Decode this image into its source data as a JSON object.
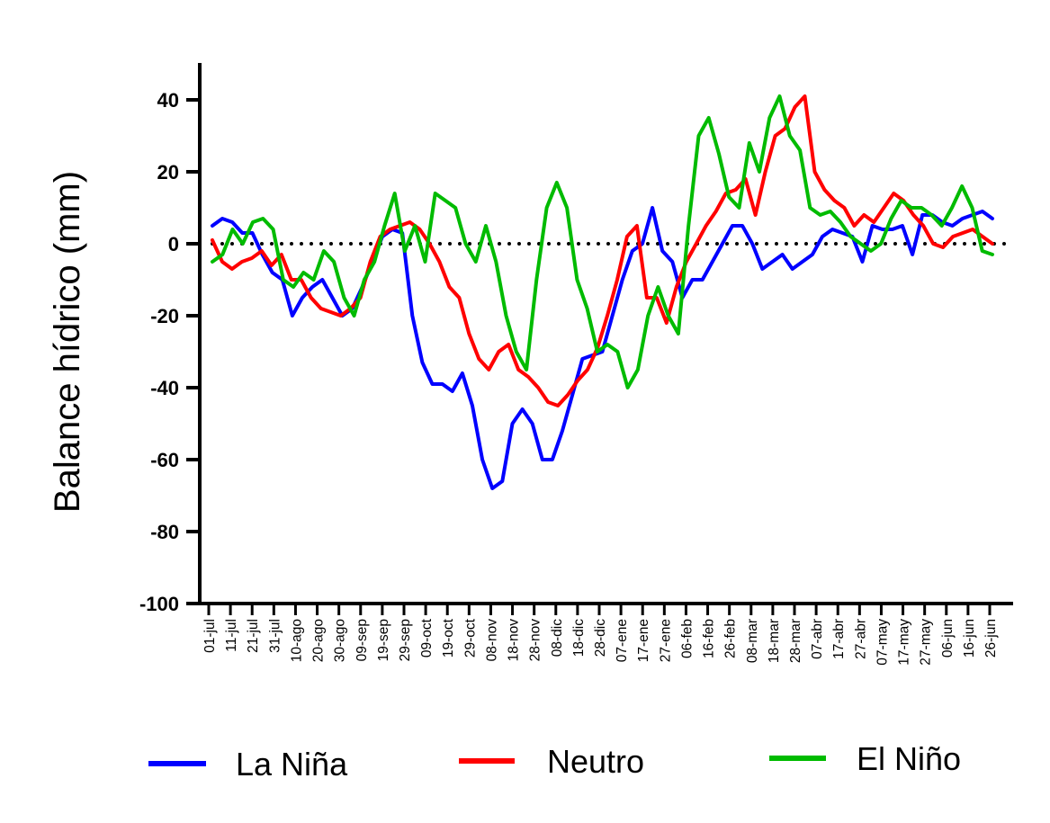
{
  "chart_data": {
    "type": "line",
    "ylabel": "Balance hídrico (mm)",
    "xlabel": "",
    "ylim": [
      -100,
      50
    ],
    "yticks": [
      40,
      20,
      0,
      -20,
      -40,
      -60,
      -80,
      -100
    ],
    "reference_line": {
      "y": 0,
      "style": "dotted"
    },
    "x_tick_labels": [
      "01-jul",
      "11-jul",
      "21-jul",
      "31-jul",
      "10-ago",
      "20-ago",
      "30-ago",
      "09-sep",
      "19-sep",
      "29-sep",
      "09-oct",
      "19-oct",
      "29-oct",
      "08-nov",
      "18-nov",
      "28-nov",
      "08-dic",
      "18-dic",
      "28-dic",
      "07-ene",
      "17-ene",
      "27-ene",
      "06-feb",
      "16-feb",
      "26-feb",
      "08-mar",
      "18-mar",
      "28-mar",
      "07-abr",
      "17-abr",
      "27-abr",
      "07-may",
      "17-may",
      "27-may",
      "06-jun",
      "16-jun",
      "26-jun"
    ],
    "legend_position": "bottom",
    "series": [
      {
        "name": "La Niña",
        "color": "#0000ff",
        "values": [
          5,
          7,
          6,
          3,
          3,
          -3,
          -8,
          -10,
          -20,
          -15,
          -12,
          -10,
          -15,
          -20,
          -18,
          -12,
          -5,
          2,
          4,
          3,
          -20,
          -33,
          -39,
          -39,
          -41,
          -36,
          -45,
          -60,
          -68,
          -66,
          -50,
          -46,
          -50,
          -60,
          -60,
          -52,
          -42,
          -32,
          -31,
          -30,
          -20,
          -10,
          -2,
          0,
          10,
          -2,
          -5,
          -15,
          -10,
          -10,
          -5,
          0,
          5,
          5,
          0,
          -7,
          -5,
          -3,
          -7,
          -5,
          -3,
          2,
          4,
          3,
          2,
          -5,
          5,
          4,
          4,
          5,
          -3,
          8,
          8,
          6,
          5,
          7,
          8,
          9,
          7
        ]
      },
      {
        "name": "Neutro",
        "color": "#ff0000",
        "values": [
          1,
          -5,
          -7,
          -5,
          -4,
          -2,
          -6,
          -3,
          -10,
          -10,
          -15,
          -18,
          -19,
          -20,
          -18,
          -15,
          -5,
          2,
          4,
          5,
          6,
          4,
          0,
          -5,
          -12,
          -15,
          -25,
          -32,
          -35,
          -30,
          -28,
          -35,
          -37,
          -40,
          -44,
          -45,
          -42,
          -38,
          -35,
          -29,
          -20,
          -10,
          2,
          5,
          -15,
          -15,
          -22,
          -12,
          -5,
          0,
          5,
          9,
          14,
          15,
          18,
          8,
          20,
          30,
          32,
          38,
          41,
          20,
          15,
          12,
          10,
          5,
          8,
          6,
          10,
          14,
          12,
          8,
          5,
          0,
          -1,
          2,
          3,
          4,
          2,
          0
        ]
      },
      {
        "name": "El Niño",
        "color": "#00bb00",
        "values": [
          -5,
          -3,
          4,
          0,
          6,
          7,
          4,
          -10,
          -12,
          -8,
          -10,
          -2,
          -5,
          -15,
          -20,
          -10,
          -5,
          5,
          14,
          -2,
          5,
          -5,
          14,
          12,
          10,
          0,
          -5,
          5,
          -5,
          -20,
          -30,
          -35,
          -10,
          10,
          17,
          10,
          -10,
          -18,
          -30,
          -28,
          -30,
          -40,
          -35,
          -20,
          -12,
          -20,
          -25,
          5,
          30,
          35,
          25,
          13,
          10,
          28,
          20,
          35,
          41,
          30,
          26,
          10,
          8,
          9,
          6,
          2,
          0,
          -2,
          0,
          7,
          12,
          10,
          10,
          8,
          5,
          10,
          16,
          10,
          -2,
          -3
        ]
      }
    ]
  }
}
